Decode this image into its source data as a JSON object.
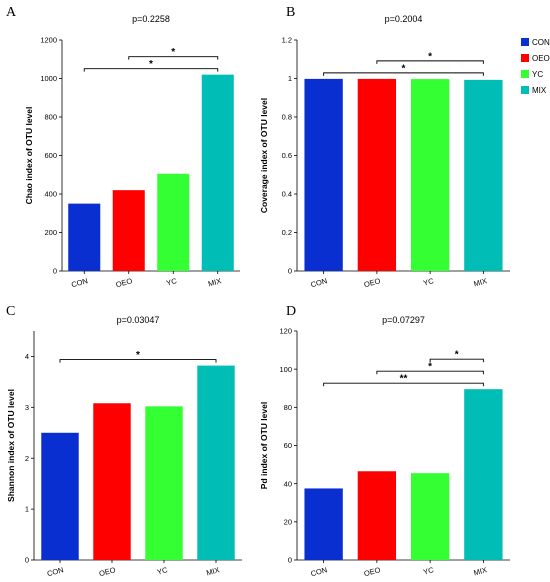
{
  "colors": {
    "CON": "#0a2fd0",
    "OEO": "#ff0000",
    "YC": "#33ff33",
    "MIX": "#00bdb5"
  },
  "legend": {
    "position": "top-right",
    "items": [
      "CON",
      "OEO",
      "YC",
      "MIX"
    ]
  },
  "chart_data": [
    {
      "panel": "A",
      "type": "bar",
      "title": "p=0.2258",
      "ylabel": "Chao index of OTU level",
      "categories": [
        "CON",
        "OEO",
        "YC",
        "MIX"
      ],
      "values": [
        350,
        420,
        505,
        1020
      ],
      "ylim": [
        0,
        1200
      ],
      "yticks": [
        0,
        200,
        400,
        600,
        800,
        1000,
        1200
      ],
      "ytick_labels": [
        "0",
        "200",
        "400",
        "600",
        "800",
        "1000",
        "1200"
      ],
      "significance": [
        {
          "from": "OEO",
          "to": "MIX",
          "label": "*"
        },
        {
          "from": "CON",
          "to": "MIX",
          "label": "*"
        }
      ]
    },
    {
      "panel": "B",
      "type": "bar",
      "title": "p=0.2004",
      "ylabel": "Coverage index of OTU level",
      "categories": [
        "CON",
        "OEO",
        "YC",
        "MIX"
      ],
      "values": [
        0.998,
        0.998,
        0.997,
        0.993
      ],
      "ylim": [
        0,
        1.2
      ],
      "yticks": [
        0,
        0.2,
        0.4,
        0.6,
        0.8,
        1.0,
        1.2
      ],
      "ytick_labels": [
        "0",
        "0.2",
        "0.4",
        "0.6",
        "0.8",
        "1",
        "1.2"
      ],
      "significance": [
        {
          "from": "OEO",
          "to": "MIX",
          "label": "*"
        },
        {
          "from": "CON",
          "to": "MIX",
          "label": "*"
        }
      ]
    },
    {
      "panel": "C",
      "type": "bar",
      "title": "p=0.03047",
      "ylabel": "Shannon index of OTU level",
      "categories": [
        "CON",
        "OEO",
        "YC",
        "MIX"
      ],
      "values": [
        2.5,
        3.08,
        3.02,
        3.82
      ],
      "ylim": [
        0,
        4.5
      ],
      "yticks": [
        0,
        1,
        2,
        3,
        4
      ],
      "ytick_labels": [
        "0",
        "1",
        "2",
        "3",
        "4"
      ],
      "significance": [
        {
          "from": "CON",
          "to": "MIX",
          "label": "*"
        }
      ]
    },
    {
      "panel": "D",
      "type": "bar",
      "title": "p=0.07297",
      "ylabel": "Pd index of OTU level",
      "categories": [
        "CON",
        "OEO",
        "YC",
        "MIX"
      ],
      "values": [
        37.5,
        46.5,
        45.5,
        89.5
      ],
      "ylim": [
        0,
        120
      ],
      "yticks": [
        0,
        20,
        40,
        60,
        80,
        100,
        120
      ],
      "ytick_labels": [
        "0",
        "20",
        "40",
        "60",
        "80",
        "100",
        "120"
      ],
      "significance": [
        {
          "from": "YC",
          "to": "MIX",
          "label": "*"
        },
        {
          "from": "OEO",
          "to": "MIX",
          "label": "*"
        },
        {
          "from": "CON",
          "to": "MIX",
          "label": "**"
        }
      ]
    }
  ]
}
